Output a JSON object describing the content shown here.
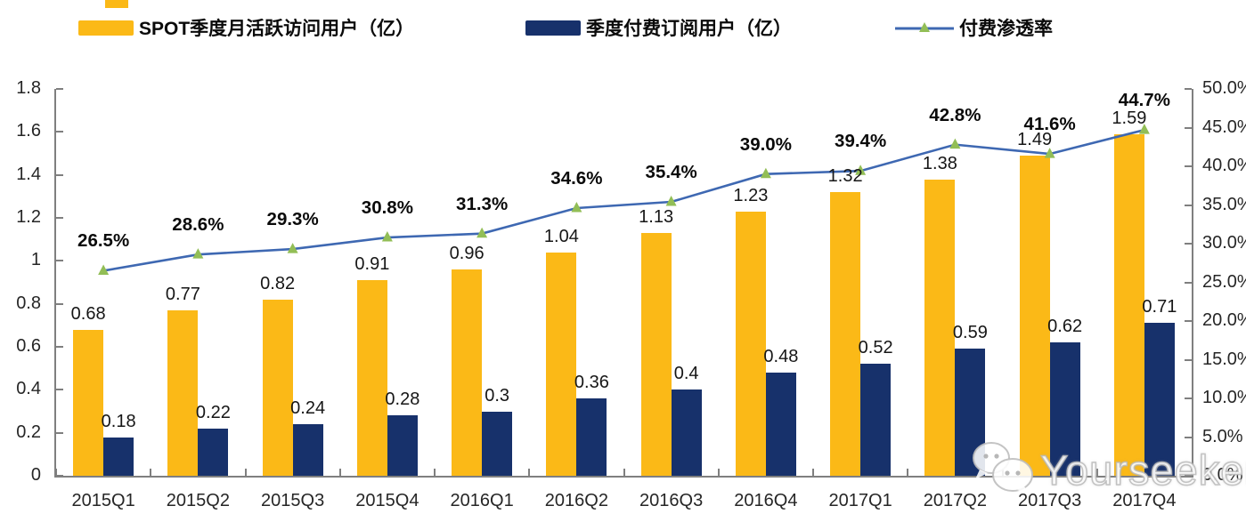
{
  "legend": {
    "items": [
      {
        "label": "SPOT季度月活跃访问用户（亿）",
        "color": "#FBB917",
        "type": "bar"
      },
      {
        "label": "季度付费订阅用户（亿）",
        "color": "#17316B",
        "type": "bar"
      },
      {
        "label": "付费渗透率",
        "color": "#3E68B2",
        "marker_color": "#92BE56",
        "type": "line"
      }
    ]
  },
  "watermark": {
    "text": "Yourseeker",
    "icon": "wechat-icon"
  },
  "chart_data": {
    "type": "bar+line",
    "title": "",
    "categories": [
      "2015Q1",
      "2015Q2",
      "2015Q3",
      "2015Q4",
      "2016Q1",
      "2016Q2",
      "2016Q3",
      "2016Q4",
      "2017Q1",
      "2017Q2",
      "2017Q3",
      "2017Q4"
    ],
    "series": [
      {
        "name": "SPOT季度月活跃访问用户（亿）",
        "type": "bar",
        "axis": "left",
        "color": "#FBB917",
        "values": [
          0.68,
          0.77,
          0.82,
          0.91,
          0.96,
          1.04,
          1.13,
          1.23,
          1.32,
          1.38,
          1.49,
          1.59
        ],
        "labels": [
          "0.68",
          "0.77",
          "0.82",
          "0.91",
          "0.96",
          "1.04",
          "1.13",
          "1.23",
          "1.32",
          "1.38",
          "1.49",
          "1.59"
        ]
      },
      {
        "name": "季度付费订阅用户（亿）",
        "type": "bar",
        "axis": "left",
        "color": "#17316B",
        "values": [
          0.18,
          0.22,
          0.24,
          0.28,
          0.3,
          0.36,
          0.4,
          0.48,
          0.52,
          0.59,
          0.62,
          0.71
        ],
        "labels": [
          "0.18",
          "0.22",
          "0.24",
          "0.28",
          "0.3",
          "0.36",
          "0.4",
          "0.48",
          "0.52",
          "0.59",
          "0.62",
          "0.71"
        ]
      },
      {
        "name": "付费渗透率",
        "type": "line",
        "axis": "right",
        "color": "#3E68B2",
        "marker_color": "#92BE56",
        "values": [
          26.5,
          28.6,
          29.3,
          30.8,
          31.3,
          34.6,
          35.4,
          39.0,
          39.4,
          42.8,
          41.6,
          44.7
        ],
        "labels": [
          "26.5%",
          "28.6%",
          "29.3%",
          "30.8%",
          "31.3%",
          "34.6%",
          "35.4%",
          "39.0%",
          "39.4%",
          "42.8%",
          "41.6%",
          "44.7%"
        ]
      }
    ],
    "left_axis": {
      "min": 0,
      "max": 1.8,
      "step": 0.2,
      "ticks": [
        "0",
        "0.2",
        "0.4",
        "0.6",
        "0.8",
        "1",
        "1.2",
        "1.4",
        "1.6",
        "1.8"
      ]
    },
    "right_axis": {
      "min": 0,
      "max": 50,
      "step": 5,
      "ticks": [
        "0.0%",
        "5.0%",
        "10.0%",
        "15.0%",
        "20.0%",
        "25.0%",
        "30.0%",
        "35.0%",
        "40.0%",
        "45.0%",
        "50.0%"
      ]
    },
    "grid": false,
    "legend_position": "top"
  }
}
